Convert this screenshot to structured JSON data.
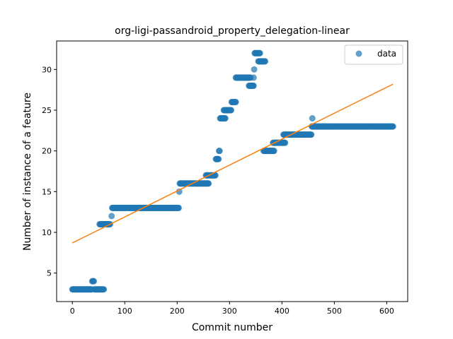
{
  "chart_data": {
    "type": "scatter",
    "title": "org-ligi-passandroid_property_delegation-linear",
    "xlabel": "Commit number",
    "ylabel": "Number of instance of a feature",
    "xlim": [
      -30,
      640
    ],
    "ylim": [
      1.5,
      33.5
    ],
    "xticks": [
      0,
      100,
      200,
      300,
      400,
      500,
      600
    ],
    "yticks": [
      5,
      10,
      15,
      20,
      25,
      30
    ],
    "xtick_labels": [
      "0",
      "100",
      "200",
      "300",
      "400",
      "500",
      "600"
    ],
    "ytick_labels": [
      "5",
      "10",
      "15",
      "20",
      "25",
      "30"
    ],
    "legend": {
      "position": "top-right",
      "entries": [
        {
          "label": "data",
          "color": "#1f77b4",
          "marker": "circle"
        }
      ]
    },
    "colors": {
      "data": "#1f77b4",
      "fit": "#ff7f0e"
    },
    "series": [
      {
        "name": "data",
        "kind": "scatter-runs",
        "runs": [
          [
            0,
            37,
            3
          ],
          [
            38,
            41,
            4
          ],
          [
            42,
            60,
            3
          ],
          [
            52,
            72,
            11
          ],
          [
            75,
            75,
            12
          ],
          [
            76,
            203,
            13
          ],
          [
            204,
            204,
            15
          ],
          [
            205,
            260,
            16
          ],
          [
            255,
            273,
            17
          ],
          [
            274,
            279,
            19
          ],
          [
            280,
            281,
            20
          ],
          [
            282,
            292,
            24
          ],
          [
            289,
            303,
            25
          ],
          [
            304,
            312,
            26
          ],
          [
            312,
            340,
            29
          ],
          [
            337,
            346,
            28
          ],
          [
            346,
            346,
            29
          ],
          [
            347,
            347,
            30
          ],
          [
            348,
            358,
            32
          ],
          [
            355,
            368,
            31
          ],
          [
            365,
            385,
            20
          ],
          [
            383,
            406,
            21
          ],
          [
            403,
            456,
            22
          ],
          [
            458,
            458,
            24
          ],
          [
            457,
            612,
            23
          ]
        ]
      },
      {
        "name": "fit",
        "kind": "line",
        "x": [
          0,
          612
        ],
        "y": [
          8.7,
          28.2
        ]
      }
    ]
  }
}
